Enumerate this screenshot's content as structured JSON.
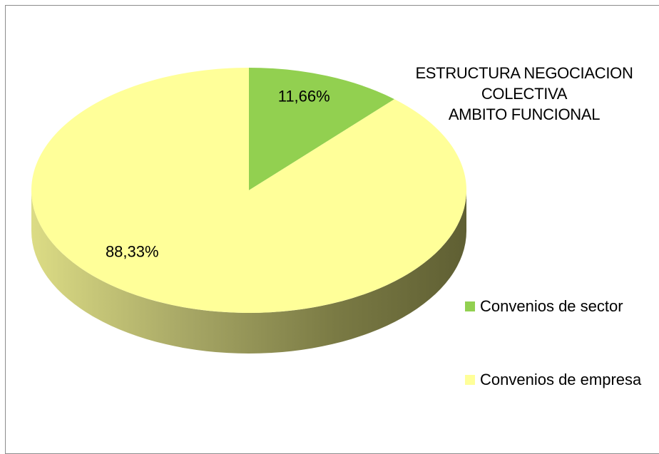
{
  "chart_data": {
    "type": "pie",
    "title": [
      "ESTRUCTURA NEGOCIACION",
      "COLECTIVA",
      "AMBITO FUNCIONAL"
    ],
    "slices": [
      {
        "name": "Convenios de sector",
        "value": 11.66,
        "label": "11,66%",
        "color": "#92d050"
      },
      {
        "name": "Convenios de empresa",
        "value": 88.33,
        "label": "88,33%",
        "color": "#ffff99"
      }
    ],
    "style": "3d",
    "legend_position": "right"
  }
}
